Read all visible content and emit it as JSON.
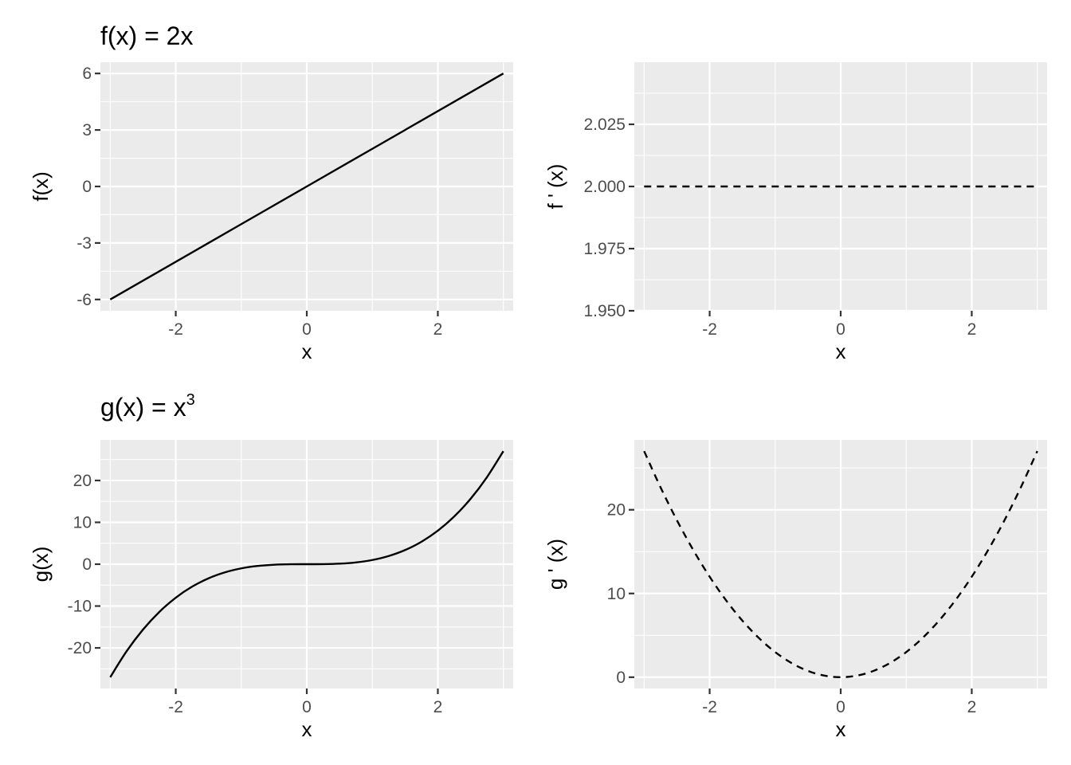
{
  "chart_data": [
    {
      "type": "line",
      "title_main": "f(x) = 2x",
      "title_sup": "",
      "xlabel": "x",
      "ylabel": "f(x)",
      "xlim": [
        -3.15,
        3.15
      ],
      "ylim": [
        -6.6,
        6.6
      ],
      "x_ticks": [
        -2,
        0,
        2
      ],
      "x_tick_labels": [
        "-2",
        "0",
        "2"
      ],
      "y_ticks": [
        -6,
        -3,
        0,
        3,
        6
      ],
      "y_tick_labels": [
        "-6",
        "-3",
        "0",
        "3",
        "6"
      ],
      "grid": true,
      "series": [
        {
          "linestyle": "solid",
          "x": [
            -3,
            -2,
            -1,
            0,
            1,
            2,
            3
          ],
          "y": [
            -6,
            -4,
            -2,
            0,
            2,
            4,
            6
          ]
        }
      ]
    },
    {
      "type": "line",
      "title_main": "",
      "title_sup": "",
      "xlabel": "x",
      "ylabel": "f ' (x)",
      "xlim": [
        -3.15,
        3.15
      ],
      "ylim": [
        1.95,
        2.05
      ],
      "x_ticks": [
        -2,
        0,
        2
      ],
      "x_tick_labels": [
        "-2",
        "0",
        "2"
      ],
      "y_ticks": [
        1.95,
        1.975,
        2.0,
        2.025
      ],
      "y_tick_labels": [
        "1.950",
        "1.975",
        "2.000",
        "2.025"
      ],
      "grid": true,
      "series": [
        {
          "linestyle": "dashed",
          "x": [
            -3,
            -2,
            -1,
            0,
            1,
            2,
            3
          ],
          "y": [
            2,
            2,
            2,
            2,
            2,
            2,
            2
          ]
        }
      ]
    },
    {
      "type": "line",
      "title_main": "g(x) = x",
      "title_sup": "3",
      "xlabel": "x",
      "ylabel": "g(x)",
      "xlim": [
        -3.15,
        3.15
      ],
      "ylim": [
        -29.7,
        29.7
      ],
      "x_ticks": [
        -2,
        0,
        2
      ],
      "x_tick_labels": [
        "-2",
        "0",
        "2"
      ],
      "y_ticks": [
        -20,
        -10,
        0,
        10,
        20
      ],
      "y_tick_labels": [
        "-20",
        "-10",
        "0",
        "10",
        "20"
      ],
      "grid": true,
      "series": [
        {
          "linestyle": "solid",
          "x": [
            -3,
            -2.75,
            -2.5,
            -2.25,
            -2,
            -1.75,
            -1.5,
            -1.25,
            -1,
            -0.75,
            -0.5,
            -0.25,
            0,
            0.25,
            0.5,
            0.75,
            1,
            1.25,
            1.5,
            1.75,
            2,
            2.25,
            2.5,
            2.75,
            3
          ],
          "y": [
            -27,
            -20.797,
            -15.625,
            -11.391,
            -8,
            -5.359,
            -3.375,
            -1.953,
            -1,
            -0.422,
            -0.125,
            -0.016,
            0,
            0.016,
            0.125,
            0.422,
            1,
            1.953,
            3.375,
            5.359,
            8,
            11.391,
            15.625,
            20.797,
            27
          ]
        }
      ]
    },
    {
      "type": "line",
      "title_main": "",
      "title_sup": "",
      "xlabel": "x",
      "ylabel": "g ' (x)",
      "xlim": [
        -3.15,
        3.15
      ],
      "ylim": [
        -1.35,
        28.35
      ],
      "x_ticks": [
        -2,
        0,
        2
      ],
      "x_tick_labels": [
        "-2",
        "0",
        "2"
      ],
      "y_ticks": [
        0,
        10,
        20
      ],
      "y_tick_labels": [
        "0",
        "10",
        "20"
      ],
      "grid": true,
      "series": [
        {
          "linestyle": "dashed",
          "x": [
            -3,
            -2.75,
            -2.5,
            -2.25,
            -2,
            -1.75,
            -1.5,
            -1.25,
            -1,
            -0.75,
            -0.5,
            -0.25,
            0,
            0.25,
            0.5,
            0.75,
            1,
            1.25,
            1.5,
            1.75,
            2,
            2.25,
            2.5,
            2.75,
            3
          ],
          "y": [
            27,
            22.688,
            18.75,
            15.188,
            12,
            9.188,
            6.75,
            4.688,
            3,
            1.688,
            0.75,
            0.188,
            0,
            0.188,
            0.75,
            1.688,
            3,
            4.688,
            6.75,
            9.188,
            12,
            15.188,
            18.75,
            22.688,
            27
          ]
        }
      ]
    }
  ]
}
